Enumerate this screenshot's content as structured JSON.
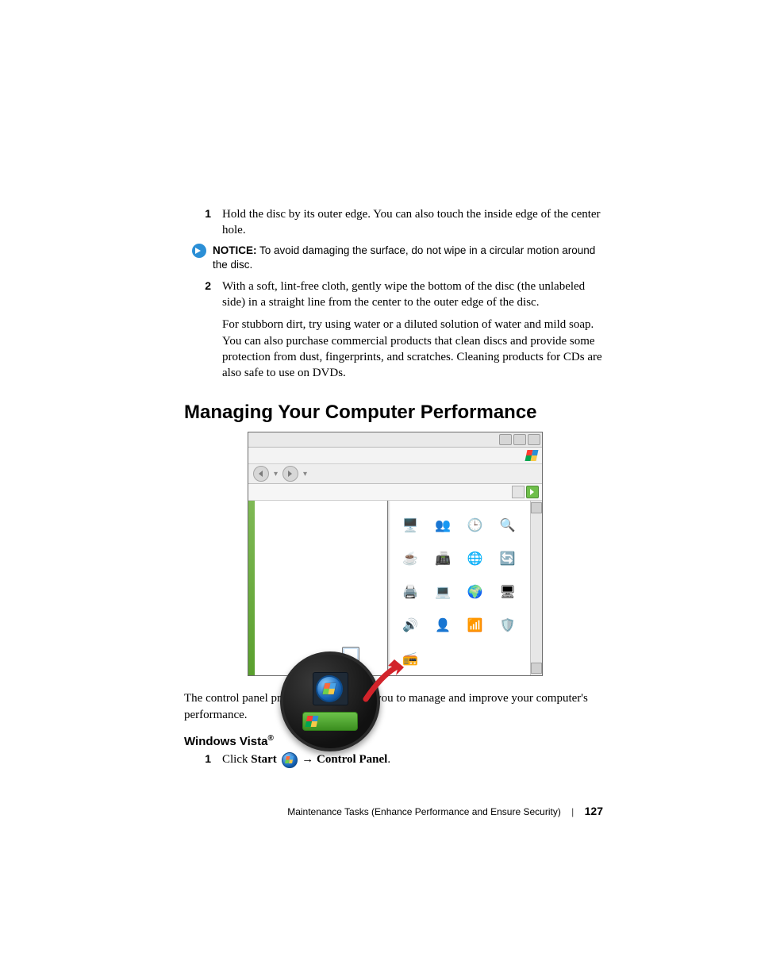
{
  "steps_top": {
    "s1_num": "1",
    "s1_text": "Hold the disc by its outer edge. You can also touch the inside edge of the center hole.",
    "s2_num": "2",
    "s2_text": "With a soft, lint-free cloth, gently wipe the bottom of the disc (the unlabeled side) in a straight line from the center to the outer edge of the disc."
  },
  "notice": {
    "label": "NOTICE:",
    "text": " To avoid damaging the surface, do not wipe in a circular motion around the disc."
  },
  "para_stubborn": "For stubborn dirt, try using water or a diluted solution of water and mild soap. You can also purchase commercial products that clean discs and provide some protection from dust, fingerprints, and scratches. Cleaning products for CDs are also safe to use on DVDs.",
  "heading_main": "Managing Your Computer Performance",
  "screenshot": {
    "icons": [
      {
        "name": "display-icon",
        "glyph": "🖥️"
      },
      {
        "name": "users-icon",
        "glyph": "👥"
      },
      {
        "name": "clock-icon",
        "glyph": "🕒"
      },
      {
        "name": "search-icon",
        "glyph": "🔍"
      },
      {
        "name": "java-icon",
        "glyph": "☕"
      },
      {
        "name": "scanner-icon",
        "glyph": "📠"
      },
      {
        "name": "globe-icon",
        "glyph": "🌐"
      },
      {
        "name": "sync-icon",
        "glyph": "🔄"
      },
      {
        "name": "printer-icon",
        "glyph": "🖨️"
      },
      {
        "name": "network-computer-icon",
        "glyph": "💻"
      },
      {
        "name": "internet-icon",
        "glyph": "🌍"
      },
      {
        "name": "system-icon",
        "glyph": "🖥"
      },
      {
        "name": "sound-icon",
        "glyph": "🔊"
      },
      {
        "name": "user-accounts-icon",
        "glyph": "👤"
      },
      {
        "name": "wireless-icon",
        "glyph": "📶"
      },
      {
        "name": "security-icon",
        "glyph": "🛡️"
      },
      {
        "name": "device-icon",
        "glyph": "📻"
      }
    ]
  },
  "para_cp": "The control panel provides the tools for you to manage and improve your computer's performance.",
  "heading_vista": "Windows Vista",
  "heading_vista_sup": "®",
  "vista_step": {
    "num": "1",
    "pre": "Click ",
    "start": "Start",
    "arrow": " → ",
    "cp": "Control Panel",
    "post": "."
  },
  "footer": {
    "chapter": "Maintenance Tasks (Enhance Performance and Ensure Security)",
    "page": "127"
  },
  "colors": {
    "notice_icon": "#2b8fd6",
    "arrow_red": "#d2232a"
  }
}
